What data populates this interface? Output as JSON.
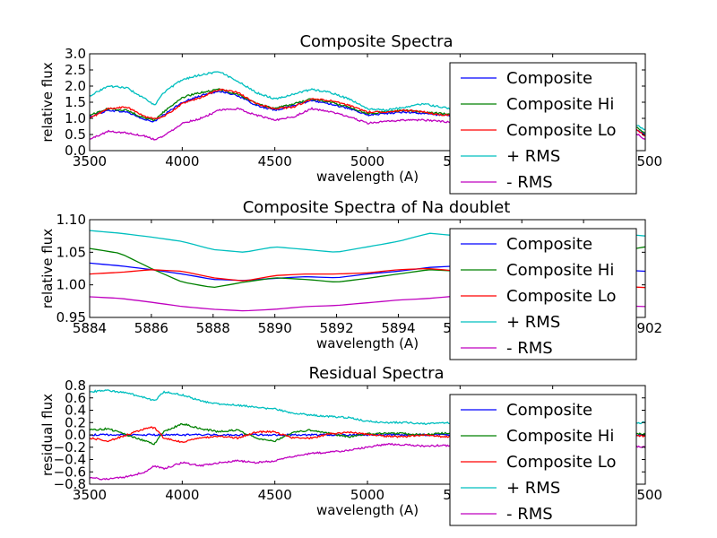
{
  "chart_data": [
    {
      "type": "line",
      "title": "Composite Spectra",
      "xlabel": "wavelength (A)",
      "ylabel": "relative flux",
      "xlim": [
        3500,
        6500
      ],
      "ylim": [
        0.0,
        3.0
      ],
      "xticks": [
        "3500",
        "4000",
        "4500",
        "5000",
        "5500",
        "6000",
        "6500"
      ],
      "yticks": [
        "0.0",
        "0.5",
        "1.0",
        "1.5",
        "2.0",
        "2.5",
        "3.0"
      ],
      "legend": "right",
      "x": [
        3500,
        3600,
        3700,
        3800,
        3850,
        3900,
        4000,
        4100,
        4200,
        4300,
        4400,
        4500,
        4600,
        4700,
        4800,
        4900,
        5000,
        5100,
        5200,
        5300,
        5400,
        5500,
        5600,
        5700,
        5800,
        5900,
        6000,
        6100,
        6200,
        6300,
        6400,
        6500
      ],
      "series": [
        {
          "name": "Composite",
          "color": "#0000ff",
          "values": [
            1.05,
            1.25,
            1.2,
            0.95,
            0.9,
            1.1,
            1.5,
            1.7,
            1.85,
            1.7,
            1.4,
            1.25,
            1.4,
            1.55,
            1.45,
            1.3,
            1.1,
            1.15,
            1.2,
            1.15,
            1.1,
            1.05,
            1.0,
            1.05,
            1.1,
            1.05,
            1.0,
            1.0,
            1.0,
            0.95,
            0.85,
            0.5
          ]
        },
        {
          "name": "Composite Hi",
          "color": "#008000",
          "values": [
            1.1,
            1.3,
            1.25,
            1.0,
            0.95,
            1.2,
            1.65,
            1.8,
            1.9,
            1.75,
            1.45,
            1.3,
            1.45,
            1.6,
            1.5,
            1.35,
            1.15,
            1.2,
            1.25,
            1.2,
            1.15,
            1.1,
            1.05,
            1.1,
            1.15,
            1.05,
            1.05,
            1.05,
            1.05,
            1.0,
            0.9,
            0.55
          ]
        },
        {
          "name": "Composite Lo",
          "color": "#ff0000",
          "values": [
            1.0,
            1.3,
            1.35,
            1.05,
            1.0,
            1.05,
            1.45,
            1.65,
            1.9,
            1.8,
            1.45,
            1.3,
            1.35,
            1.6,
            1.55,
            1.4,
            1.2,
            1.2,
            1.25,
            1.2,
            1.1,
            1.1,
            1.0,
            1.1,
            1.15,
            1.1,
            1.05,
            1.05,
            1.0,
            0.95,
            0.85,
            0.45
          ]
        },
        {
          "name": "+ RMS",
          "color": "#00bfbf",
          "values": [
            1.7,
            2.0,
            1.95,
            1.6,
            1.4,
            1.8,
            2.2,
            2.35,
            2.45,
            2.15,
            1.8,
            1.6,
            1.75,
            1.9,
            1.8,
            1.6,
            1.3,
            1.25,
            1.35,
            1.45,
            1.35,
            1.25,
            1.2,
            1.25,
            1.3,
            1.2,
            1.2,
            1.15,
            1.15,
            1.05,
            0.95,
            0.65
          ]
        },
        {
          "name": "- RMS",
          "color": "#bf00bf",
          "values": [
            0.35,
            0.6,
            0.55,
            0.45,
            0.35,
            0.45,
            0.85,
            1.0,
            1.25,
            1.3,
            1.1,
            0.95,
            1.05,
            1.3,
            1.2,
            1.05,
            0.85,
            0.9,
            0.95,
            0.95,
            0.9,
            0.85,
            0.85,
            0.9,
            0.95,
            0.85,
            0.85,
            0.85,
            0.8,
            0.75,
            0.7,
            0.35
          ]
        }
      ]
    },
    {
      "type": "line",
      "title": "Composite Spectra of Na doublet",
      "xlabel": "wavelength (A)",
      "ylabel": "relative flux",
      "xlim": [
        5884,
        5902
      ],
      "ylim": [
        0.92,
        1.1
      ],
      "xticks": [
        "5884",
        "5886",
        "5888",
        "5890",
        "5892",
        "5894",
        "5896",
        "5898",
        "5900",
        "5902"
      ],
      "yticks": [
        "0.95",
        "1.00",
        "1.05",
        "1.10"
      ],
      "legend": "right",
      "x": [
        5884,
        5885,
        5886,
        5887,
        5888,
        5889,
        5890,
        5891,
        5892,
        5893,
        5894,
        5895,
        5896,
        5897,
        5898,
        5899,
        5900,
        5901,
        5902
      ],
      "series": [
        {
          "name": "Composite",
          "color": "#0000ff",
          "values": [
            1.02,
            1.015,
            1.008,
            1.0,
            0.99,
            0.988,
            0.992,
            0.995,
            0.993,
            1.0,
            1.005,
            1.012,
            1.015,
            1.015,
            1.012,
            1.01,
            1.01,
            1.008,
            1.005
          ]
        },
        {
          "name": "Composite Hi",
          "color": "#008000",
          "values": [
            1.047,
            1.038,
            1.01,
            0.985,
            0.975,
            0.985,
            0.993,
            0.99,
            0.985,
            0.992,
            1.0,
            1.008,
            1.005,
            1.0,
            1.01,
            1.02,
            1.03,
            1.04,
            1.05
          ]
        },
        {
          "name": "Composite Lo",
          "color": "#ff0000",
          "values": [
            1.0,
            1.003,
            1.008,
            1.005,
            0.993,
            0.987,
            0.997,
            1.0,
            1.0,
            1.002,
            1.008,
            1.01,
            1.005,
            1.0,
            0.99,
            0.985,
            0.98,
            0.978,
            0.975
          ]
        },
        {
          "name": "+ RMS",
          "color": "#00bfbf",
          "values": [
            1.08,
            1.075,
            1.068,
            1.06,
            1.045,
            1.04,
            1.05,
            1.045,
            1.04,
            1.05,
            1.06,
            1.075,
            1.07,
            1.065,
            1.07,
            1.075,
            1.078,
            1.075,
            1.07
          ]
        },
        {
          "name": "- RMS",
          "color": "#bf00bf",
          "values": [
            0.958,
            0.955,
            0.948,
            0.94,
            0.935,
            0.932,
            0.935,
            0.94,
            0.942,
            0.947,
            0.952,
            0.955,
            0.96,
            0.955,
            0.95,
            0.948,
            0.945,
            0.942,
            0.94
          ]
        }
      ]
    },
    {
      "type": "line",
      "title": "Residual Spectra",
      "xlabel": "wavelength (A)",
      "ylabel": "residual flux",
      "xlim": [
        3500,
        6500
      ],
      "ylim": [
        -0.8,
        0.8
      ],
      "xticks": [
        "3500",
        "4000",
        "4500",
        "5000",
        "5500",
        "6000",
        "6500"
      ],
      "yticks": [
        "−0.8",
        "−0.6",
        "−0.4",
        "−0.2",
        "0.0",
        "0.2",
        "0.4",
        "0.6",
        "0.8"
      ],
      "legend": "right",
      "x": [
        3500,
        3600,
        3700,
        3800,
        3850,
        3900,
        4000,
        4100,
        4200,
        4300,
        4400,
        4500,
        4600,
        4700,
        4800,
        4900,
        5000,
        5100,
        5200,
        5300,
        5400,
        5500,
        5600,
        5700,
        5800,
        5900,
        6000,
        6100,
        6200,
        6300,
        6400,
        6500
      ],
      "series": [
        {
          "name": "Composite",
          "color": "#0000ff",
          "values": [
            0.0,
            0.0,
            0.0,
            0.0,
            0.0,
            0.0,
            0.0,
            0.0,
            0.0,
            0.0,
            0.0,
            0.0,
            0.0,
            0.0,
            0.0,
            0.0,
            0.0,
            0.0,
            0.0,
            0.0,
            0.0,
            0.0,
            0.0,
            0.0,
            0.0,
            0.0,
            0.0,
            0.0,
            0.0,
            0.0,
            0.0,
            0.0
          ]
        },
        {
          "name": "Composite Hi",
          "color": "#008000",
          "values": [
            0.08,
            0.1,
            0.0,
            -0.1,
            -0.15,
            0.05,
            0.18,
            0.1,
            0.05,
            0.08,
            -0.05,
            -0.1,
            0.05,
            0.08,
            0.02,
            -0.03,
            0.02,
            0.03,
            0.02,
            0.0,
            0.03,
            0.02,
            0.0,
            0.02,
            0.03,
            0.01,
            0.02,
            0.02,
            0.01,
            0.01,
            0.0,
            0.02
          ]
        },
        {
          "name": "Composite Lo",
          "color": "#ff0000",
          "values": [
            -0.05,
            -0.1,
            0.0,
            0.1,
            0.12,
            -0.05,
            -0.12,
            -0.05,
            -0.02,
            -0.05,
            0.05,
            0.05,
            -0.05,
            -0.05,
            0.02,
            0.04,
            0.01,
            -0.02,
            -0.03,
            0.0,
            -0.03,
            -0.02,
            0.0,
            -0.02,
            -0.03,
            -0.01,
            -0.02,
            -0.02,
            -0.01,
            -0.01,
            0.0,
            -0.02
          ]
        },
        {
          "name": "+ RMS",
          "color": "#00bfbf",
          "values": [
            0.7,
            0.72,
            0.68,
            0.6,
            0.55,
            0.7,
            0.65,
            0.55,
            0.5,
            0.48,
            0.45,
            0.42,
            0.35,
            0.32,
            0.3,
            0.28,
            0.22,
            0.2,
            0.2,
            0.18,
            0.2,
            0.18,
            0.15,
            0.18,
            0.18,
            0.16,
            0.18,
            0.17,
            0.16,
            0.17,
            0.18,
            0.2
          ]
        },
        {
          "name": "- RMS",
          "color": "#bf00bf",
          "values": [
            -0.7,
            -0.72,
            -0.68,
            -0.6,
            -0.5,
            -0.55,
            -0.45,
            -0.5,
            -0.45,
            -0.42,
            -0.45,
            -0.42,
            -0.35,
            -0.3,
            -0.28,
            -0.25,
            -0.2,
            -0.15,
            -0.16,
            -0.18,
            -0.17,
            -0.18,
            -0.16,
            -0.17,
            -0.18,
            -0.16,
            -0.17,
            -0.16,
            -0.17,
            -0.16,
            -0.18,
            -0.2
          ]
        }
      ]
    }
  ]
}
